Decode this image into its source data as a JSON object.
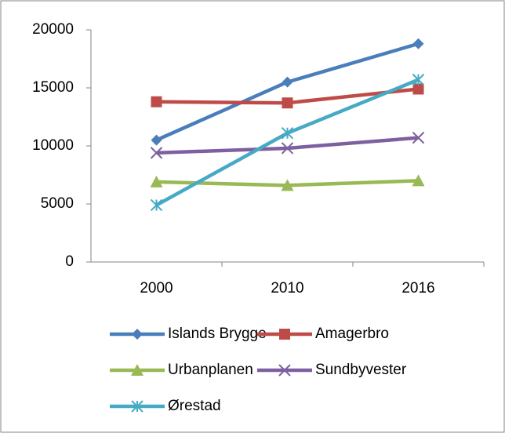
{
  "chart_data": {
    "type": "line",
    "categories": [
      "2000",
      "2010",
      "2016"
    ],
    "series": [
      {
        "name": "Islands Brygge",
        "color": "#4a7ebb",
        "marker": "diamond",
        "values": [
          10500,
          15500,
          18800
        ]
      },
      {
        "name": "Amagerbro",
        "color": "#be4b48",
        "marker": "square",
        "values": [
          13800,
          13700,
          14900
        ]
      },
      {
        "name": "Urbanplanen",
        "color": "#98b954",
        "marker": "triangle",
        "values": [
          6900,
          6600,
          7000
        ]
      },
      {
        "name": "Sundbyvester",
        "color": "#7d60a0",
        "marker": "x",
        "values": [
          9400,
          9800,
          10700
        ]
      },
      {
        "name": "Ørestad",
        "color": "#46aac5",
        "marker": "asterisk",
        "values": [
          4900,
          11100,
          15700
        ]
      }
    ],
    "ylim": [
      0,
      20000
    ],
    "yticks": [
      0,
      5000,
      10000,
      15000,
      20000
    ],
    "grid": false,
    "legend": "bottom"
  }
}
